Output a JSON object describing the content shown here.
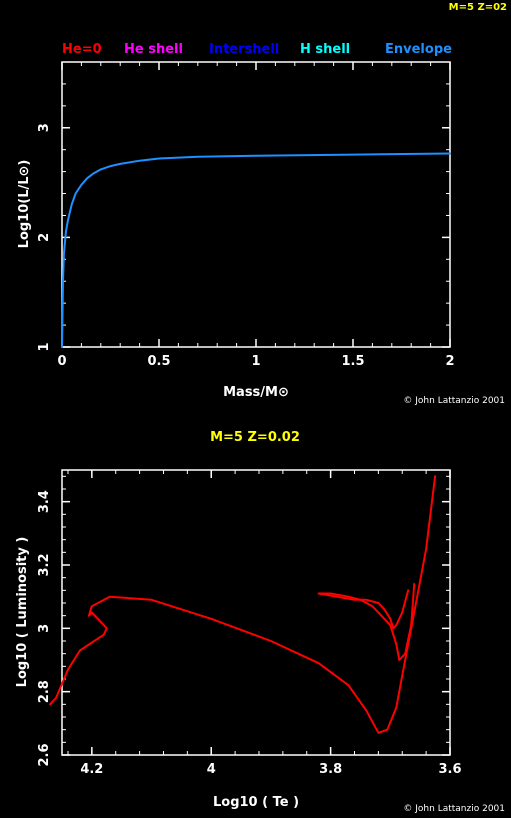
{
  "corner_label": "M=5 Z=02",
  "top_legend": [
    {
      "label": "He=0",
      "color": "#ff0000"
    },
    {
      "label": "He shell",
      "color": "#ff00ff"
    },
    {
      "label": "Intershell",
      "color": "#0000ff"
    },
    {
      "label": "H shell",
      "color": "#00ffff"
    },
    {
      "label": "Envelope",
      "color": "#1e90ff"
    }
  ],
  "credit_top": "© John Lattanzio 2001",
  "credit_bottom": "© John Lattanzio 2001",
  "colors": {
    "background": "#000000",
    "axes": "#ffffff",
    "title": "#ffff00",
    "envelope_curve": "#1e90ff",
    "track": "#ff0000"
  },
  "chart_data": [
    {
      "type": "line",
      "title": "",
      "xlabel": "Mass/M⊙",
      "ylabel": "Log10(L/L⊙)",
      "xlim": [
        0,
        2
      ],
      "ylim": [
        1,
        3.6
      ],
      "x_ticks": [
        0,
        0.5,
        1,
        1.5,
        2
      ],
      "x_tick_labels": [
        "0",
        "0.5",
        "1",
        "1.5",
        "2"
      ],
      "y_ticks": [
        1,
        2,
        3
      ],
      "y_tick_labels": [
        "1",
        "2",
        "3"
      ],
      "grid": false,
      "legend": "top",
      "series": [
        {
          "name": "Envelope",
          "color": "#1e90ff",
          "x": [
            0,
            0.005,
            0.01,
            0.02,
            0.03,
            0.05,
            0.07,
            0.1,
            0.13,
            0.16,
            0.2,
            0.25,
            0.3,
            0.4,
            0.5,
            0.7,
            1.0,
            1.5,
            2.0
          ],
          "y": [
            1.0,
            1.6,
            1.85,
            2.05,
            2.15,
            2.3,
            2.4,
            2.48,
            2.54,
            2.58,
            2.62,
            2.65,
            2.67,
            2.7,
            2.72,
            2.735,
            2.745,
            2.755,
            2.765
          ]
        }
      ]
    },
    {
      "type": "line",
      "title": "M=5 Z=0.02",
      "xlabel": "Log10 ( Te )",
      "ylabel": "Log10 ( Luminosity )",
      "xlim": [
        4.25,
        3.6
      ],
      "ylim": [
        2.6,
        3.5
      ],
      "x_ticks": [
        4.2,
        4,
        3.8,
        3.6
      ],
      "x_tick_labels": [
        "4.2",
        "4",
        "3.8",
        "3.6"
      ],
      "y_ticks": [
        2.6,
        2.8,
        3,
        3.2,
        3.4
      ],
      "y_tick_labels": [
        "2.6",
        "2.8",
        "3",
        "3.2",
        "3.4"
      ],
      "grid": false,
      "series": [
        {
          "color": "#ff0000",
          "x": [
            4.27,
            4.26,
            4.24,
            4.22,
            4.18,
            4.175,
            4.19,
            4.2,
            4.205,
            4.2,
            4.17,
            4.1,
            4.0,
            3.9,
            3.82,
            3.77,
            3.74,
            3.72,
            3.705,
            3.69,
            3.68,
            3.67,
            3.66,
            3.64,
            3.625
          ],
          "y": [
            2.76,
            2.78,
            2.87,
            2.93,
            2.98,
            3.0,
            3.03,
            3.05,
            3.04,
            3.07,
            3.1,
            3.09,
            3.03,
            2.96,
            2.89,
            2.82,
            2.74,
            2.67,
            2.68,
            2.75,
            2.85,
            2.95,
            3.05,
            3.25,
            3.48
          ]
        },
        {
          "color": "#ff0000",
          "x": [
            3.82,
            3.8,
            3.77,
            3.75,
            3.73,
            3.715,
            3.7,
            3.69,
            3.685,
            3.675,
            3.665,
            3.66
          ],
          "y": [
            3.11,
            3.11,
            3.1,
            3.09,
            3.07,
            3.04,
            3.01,
            2.95,
            2.9,
            2.92,
            3.01,
            3.14
          ]
        },
        {
          "color": "#ff0000",
          "x": [
            3.82,
            3.79,
            3.76,
            3.74,
            3.72,
            3.71,
            3.7,
            3.695,
            3.69,
            3.68,
            3.67
          ],
          "y": [
            3.11,
            3.1,
            3.09,
            3.09,
            3.08,
            3.06,
            3.03,
            3.0,
            3.01,
            3.05,
            3.12
          ]
        }
      ]
    }
  ]
}
